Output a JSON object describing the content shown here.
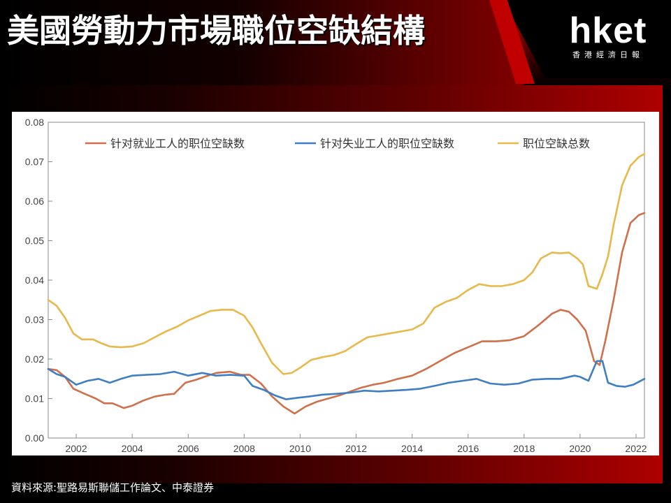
{
  "header": {
    "title": "美國勞動力市場職位空缺結構",
    "logo_text": "hket",
    "logo_subtitle": "香港經濟日報"
  },
  "source": "資料來源:聖路易斯聯儲工作論文、中泰證券",
  "colors": {
    "employed": "#d0704a",
    "unemployed": "#3f7ec2",
    "total": "#e8b84a",
    "brand_red": "#c00000"
  },
  "chart_data": {
    "type": "line",
    "title": "",
    "xlabel": "",
    "ylabel": "",
    "xlim": [
      2001.0,
      2022.3
    ],
    "ylim": [
      0,
      0.08
    ],
    "grid": false,
    "legend_position": "top",
    "x_ticks": [
      "2002",
      "2004",
      "2006",
      "2008",
      "2010",
      "2012",
      "2014",
      "2016",
      "2018",
      "2020",
      "2022"
    ],
    "y_ticks": [
      "0.00",
      "0.01",
      "0.02",
      "0.03",
      "0.04",
      "0.05",
      "0.06",
      "0.07",
      "0.08"
    ],
    "series": [
      {
        "name": "针对就业工人的职位空缺数",
        "color": "#d0704a",
        "x": [
          2001.0,
          2001.3,
          2001.6,
          2001.9,
          2002.3,
          2002.7,
          2003.0,
          2003.3,
          2003.7,
          2004.0,
          2004.4,
          2004.8,
          2005.2,
          2005.5,
          2005.9,
          2006.3,
          2006.7,
          2007.0,
          2007.5,
          2007.9,
          2008.2,
          2008.6,
          2009.0,
          2009.4,
          2009.8,
          2010.2,
          2010.6,
          2011.0,
          2011.4,
          2011.8,
          2012.2,
          2012.6,
          2013.0,
          2013.5,
          2014.0,
          2014.5,
          2015.0,
          2015.5,
          2016.0,
          2016.5,
          2017.0,
          2017.5,
          2018.0,
          2018.5,
          2019.0,
          2019.3,
          2019.6,
          2019.9,
          2020.2,
          2020.5,
          2020.7,
          2020.9,
          2021.2,
          2021.5,
          2021.8,
          2022.1,
          2022.3
        ],
        "y": [
          0.0175,
          0.0172,
          0.0155,
          0.0125,
          0.0112,
          0.01,
          0.0088,
          0.0088,
          0.0076,
          0.0082,
          0.0095,
          0.0105,
          0.011,
          0.0112,
          0.014,
          0.0148,
          0.0158,
          0.0165,
          0.0168,
          0.016,
          0.016,
          0.0138,
          0.0105,
          0.008,
          0.0062,
          0.008,
          0.0092,
          0.01,
          0.0108,
          0.0118,
          0.0128,
          0.0135,
          0.014,
          0.015,
          0.0158,
          0.0175,
          0.0195,
          0.0215,
          0.023,
          0.0245,
          0.0245,
          0.0248,
          0.0258,
          0.0285,
          0.0315,
          0.0325,
          0.032,
          0.03,
          0.0272,
          0.0195,
          0.0185,
          0.0245,
          0.035,
          0.047,
          0.0545,
          0.0565,
          0.057
        ]
      },
      {
        "name": "针对失业工人的职位空缺数",
        "color": "#3f7ec2",
        "x": [
          2001.0,
          2001.3,
          2001.6,
          2002.0,
          2002.4,
          2002.8,
          2003.2,
          2003.6,
          2004.0,
          2004.5,
          2005.0,
          2005.5,
          2006.0,
          2006.5,
          2007.0,
          2007.5,
          2008.0,
          2008.3,
          2008.7,
          2009.1,
          2009.5,
          2009.9,
          2010.3,
          2010.8,
          2011.3,
          2011.8,
          2012.3,
          2012.8,
          2013.3,
          2013.8,
          2014.3,
          2014.8,
          2015.3,
          2015.8,
          2016.3,
          2016.8,
          2017.3,
          2017.8,
          2018.3,
          2018.8,
          2019.3,
          2019.8,
          2020.0,
          2020.3,
          2020.6,
          2020.8,
          2021.0,
          2021.3,
          2021.6,
          2021.9,
          2022.3
        ],
        "y": [
          0.0175,
          0.0162,
          0.0155,
          0.0135,
          0.0145,
          0.015,
          0.014,
          0.015,
          0.0158,
          0.016,
          0.0162,
          0.0168,
          0.0158,
          0.0165,
          0.0158,
          0.016,
          0.0158,
          0.0132,
          0.0122,
          0.0108,
          0.0098,
          0.0102,
          0.0105,
          0.011,
          0.0112,
          0.0115,
          0.012,
          0.0118,
          0.012,
          0.0122,
          0.0125,
          0.0132,
          0.014,
          0.0145,
          0.015,
          0.0138,
          0.0135,
          0.0138,
          0.0148,
          0.015,
          0.015,
          0.0158,
          0.0155,
          0.0145,
          0.0195,
          0.0195,
          0.014,
          0.0132,
          0.013,
          0.0135,
          0.015
        ]
      },
      {
        "name": "职位空缺总数",
        "color": "#e8b84a",
        "x": [
          2001.0,
          2001.3,
          2001.6,
          2001.9,
          2002.2,
          2002.6,
          2002.9,
          2003.2,
          2003.6,
          2004.0,
          2004.4,
          2004.8,
          2005.2,
          2005.6,
          2006.0,
          2006.4,
          2006.8,
          2007.2,
          2007.6,
          2008.0,
          2008.3,
          2008.6,
          2009.0,
          2009.4,
          2009.7,
          2010.0,
          2010.4,
          2010.8,
          2011.2,
          2011.6,
          2012.0,
          2012.4,
          2012.8,
          2013.2,
          2013.6,
          2014.0,
          2014.4,
          2014.8,
          2015.2,
          2015.6,
          2016.0,
          2016.4,
          2016.8,
          2017.2,
          2017.6,
          2018.0,
          2018.3,
          2018.6,
          2019.0,
          2019.3,
          2019.6,
          2019.9,
          2020.1,
          2020.3,
          2020.6,
          2020.8,
          2021.0,
          2021.2,
          2021.5,
          2021.8,
          2022.1,
          2022.3
        ],
        "y": [
          0.035,
          0.0335,
          0.0305,
          0.0265,
          0.025,
          0.025,
          0.024,
          0.0232,
          0.023,
          0.0232,
          0.024,
          0.0255,
          0.027,
          0.0282,
          0.0298,
          0.031,
          0.0322,
          0.0325,
          0.0325,
          0.031,
          0.028,
          0.024,
          0.019,
          0.0162,
          0.0165,
          0.0178,
          0.0198,
          0.0205,
          0.021,
          0.022,
          0.0238,
          0.0255,
          0.026,
          0.0265,
          0.027,
          0.0275,
          0.029,
          0.033,
          0.0345,
          0.0355,
          0.0375,
          0.039,
          0.0385,
          0.0385,
          0.039,
          0.04,
          0.042,
          0.0455,
          0.047,
          0.0468,
          0.047,
          0.0455,
          0.044,
          0.0385,
          0.0378,
          0.0415,
          0.046,
          0.054,
          0.064,
          0.069,
          0.0712,
          0.072
        ]
      }
    ]
  }
}
